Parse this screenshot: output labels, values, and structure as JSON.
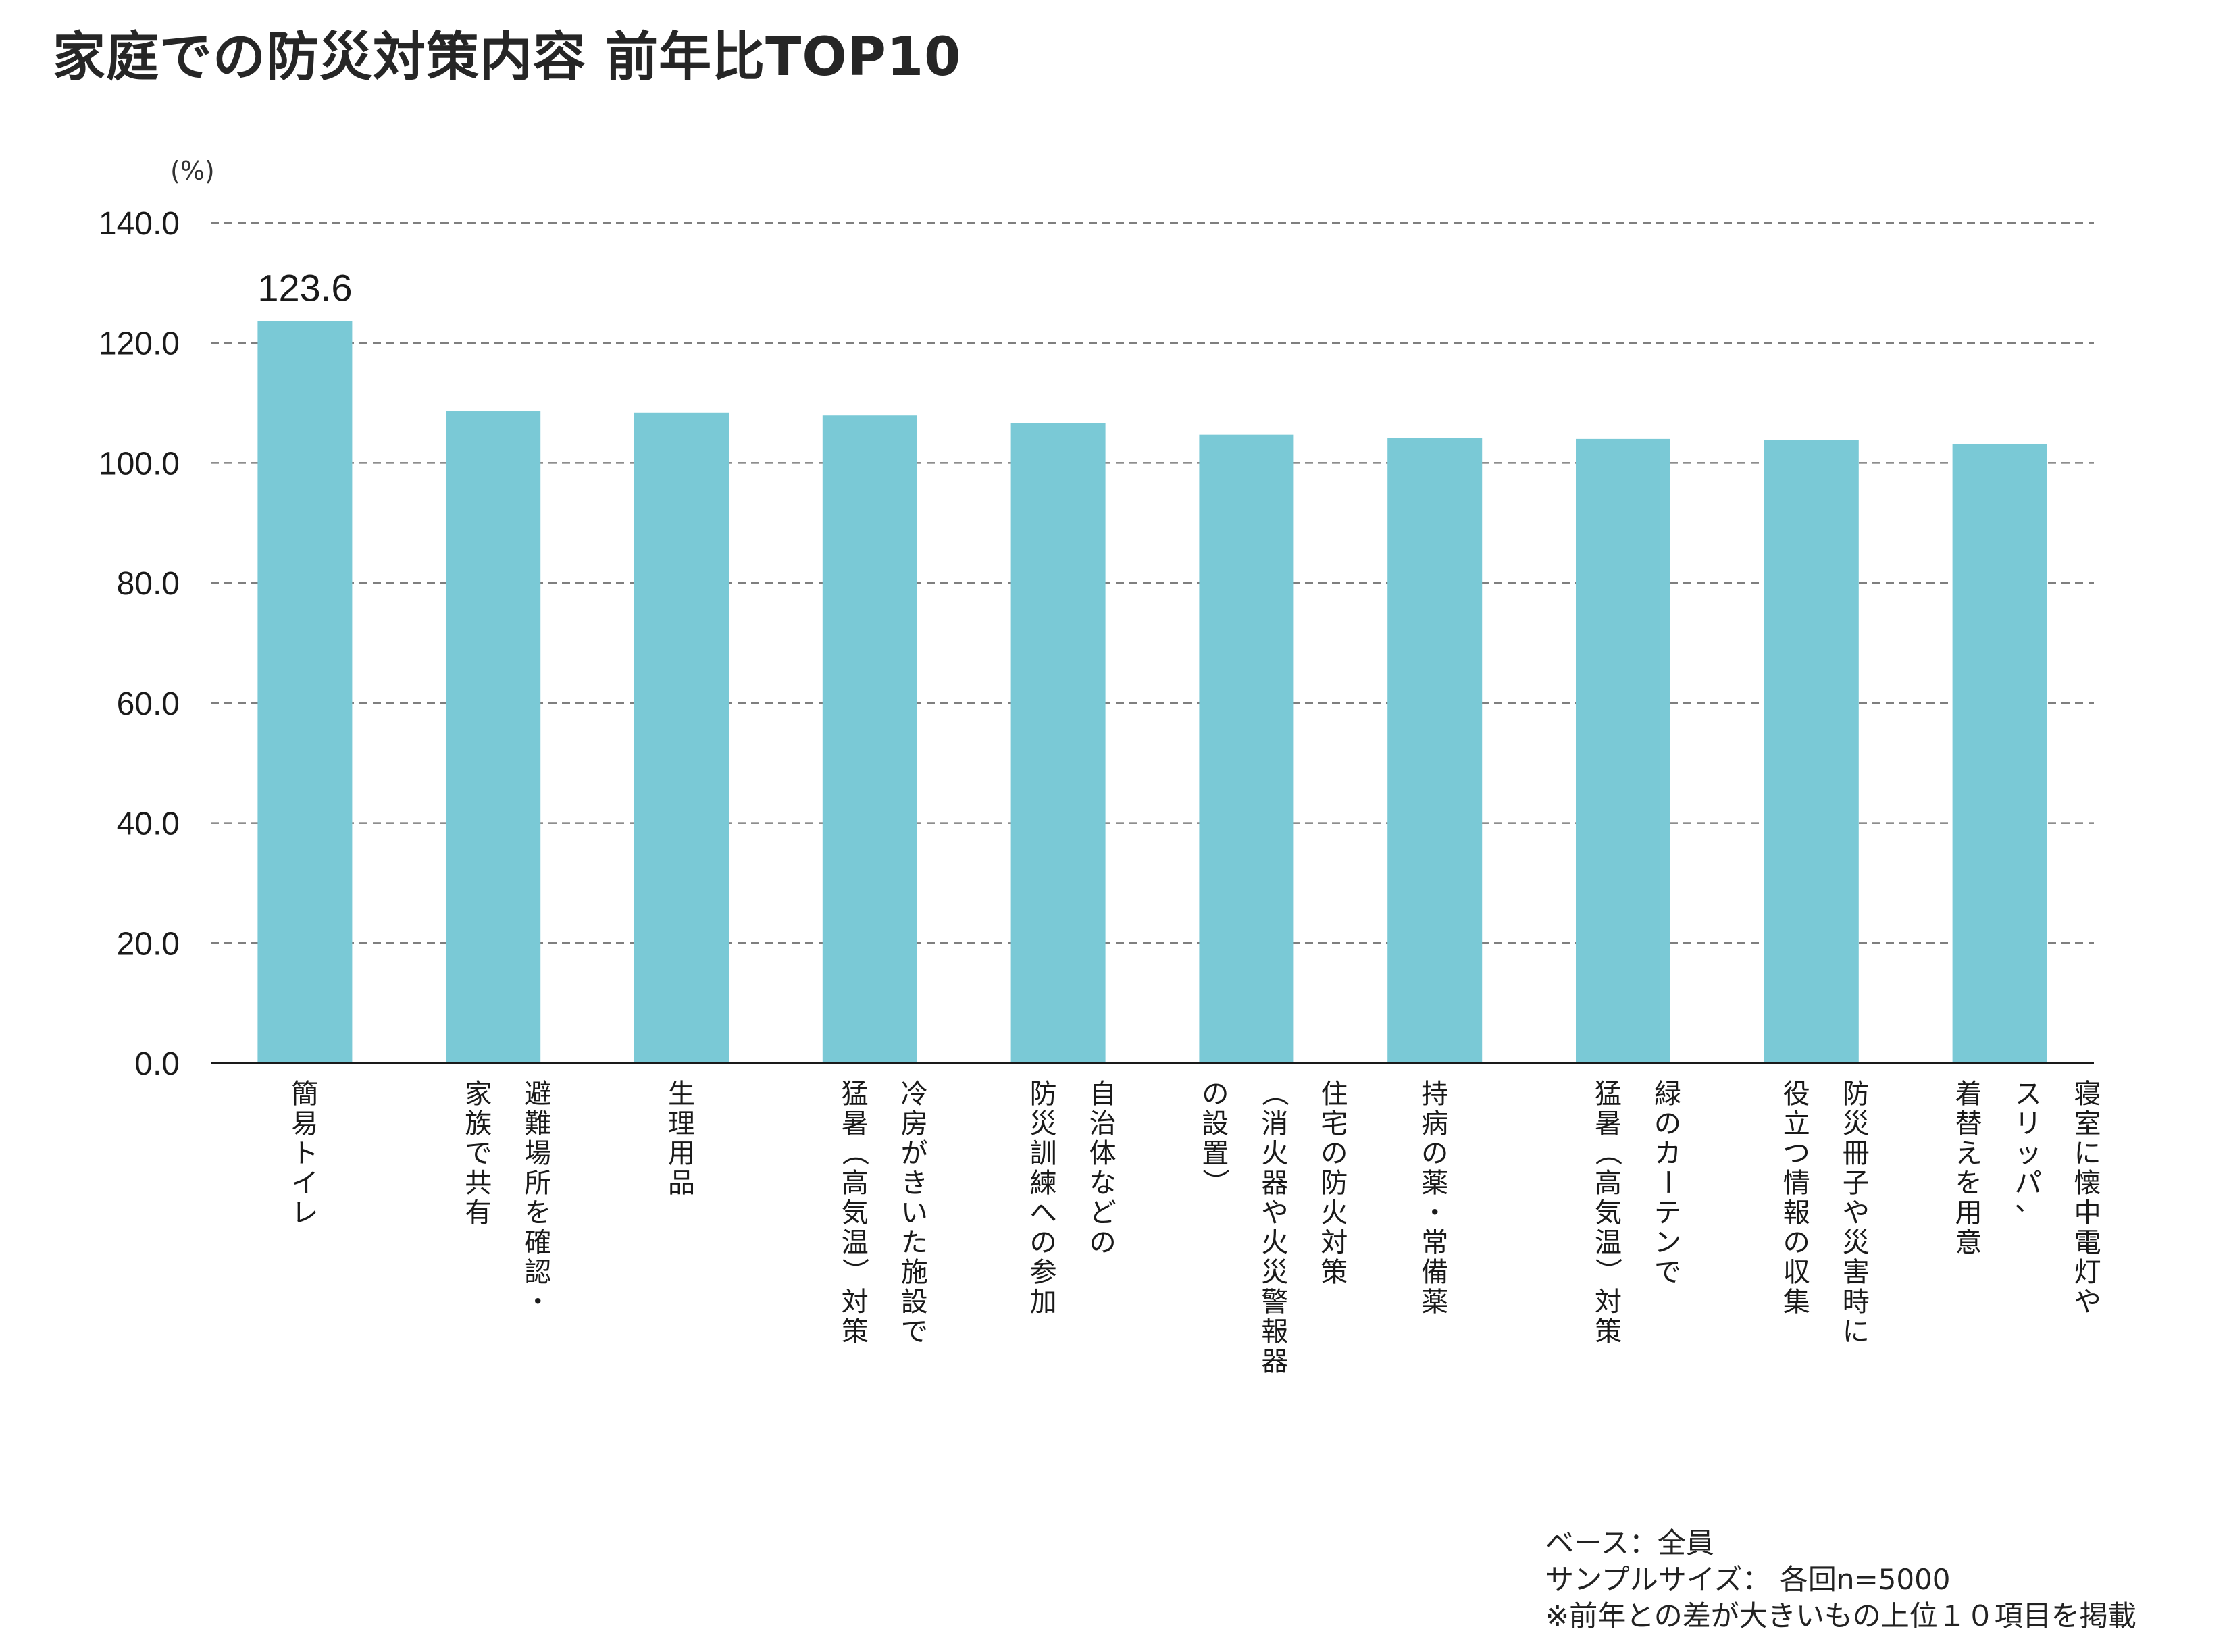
{
  "title": "家庭での防災対策内容 前年比TOP10",
  "chart_data": {
    "type": "bar",
    "ylabel": "(%)",
    "ylim": [
      0,
      140
    ],
    "yticks": [
      "0.0",
      "20.0",
      "40.0",
      "60.0",
      "80.0",
      "100.0",
      "120.0",
      "140.0"
    ],
    "grid": true,
    "color": "#7ac9d6",
    "categories": [
      [
        "簡易トイレ"
      ],
      [
        "避難場所を確認・",
        "家族で共有"
      ],
      [
        "生理用品"
      ],
      [
        "冷房がきいた施設で",
        "猛暑（高気温）対策"
      ],
      [
        "自治体などの",
        "防災訓練への参加"
      ],
      [
        "住宅の防火対策",
        "（消火器や火災警報器",
        "の設置）"
      ],
      [
        "持病の薬・常備薬"
      ],
      [
        "緑のカーテンで",
        "猛暑（高気温）対策"
      ],
      [
        "防災冊子や災害時に",
        "役立つ情報の収集"
      ],
      [
        "寝室に懐中電灯や",
        "スリッパ、",
        "着替えを用意"
      ]
    ],
    "values": [
      123.6,
      108.6,
      108.4,
      107.9,
      106.6,
      104.7,
      104.1,
      104.0,
      103.8,
      103.2
    ],
    "data_labels": [
      {
        "index": 0,
        "text": "123.6"
      }
    ]
  },
  "footnote": {
    "base": "ベース：全員",
    "sample": "サンプルサイズ： 各回n=5000",
    "note": "※前年との差が大きいもの上位１０項目を掲載"
  }
}
